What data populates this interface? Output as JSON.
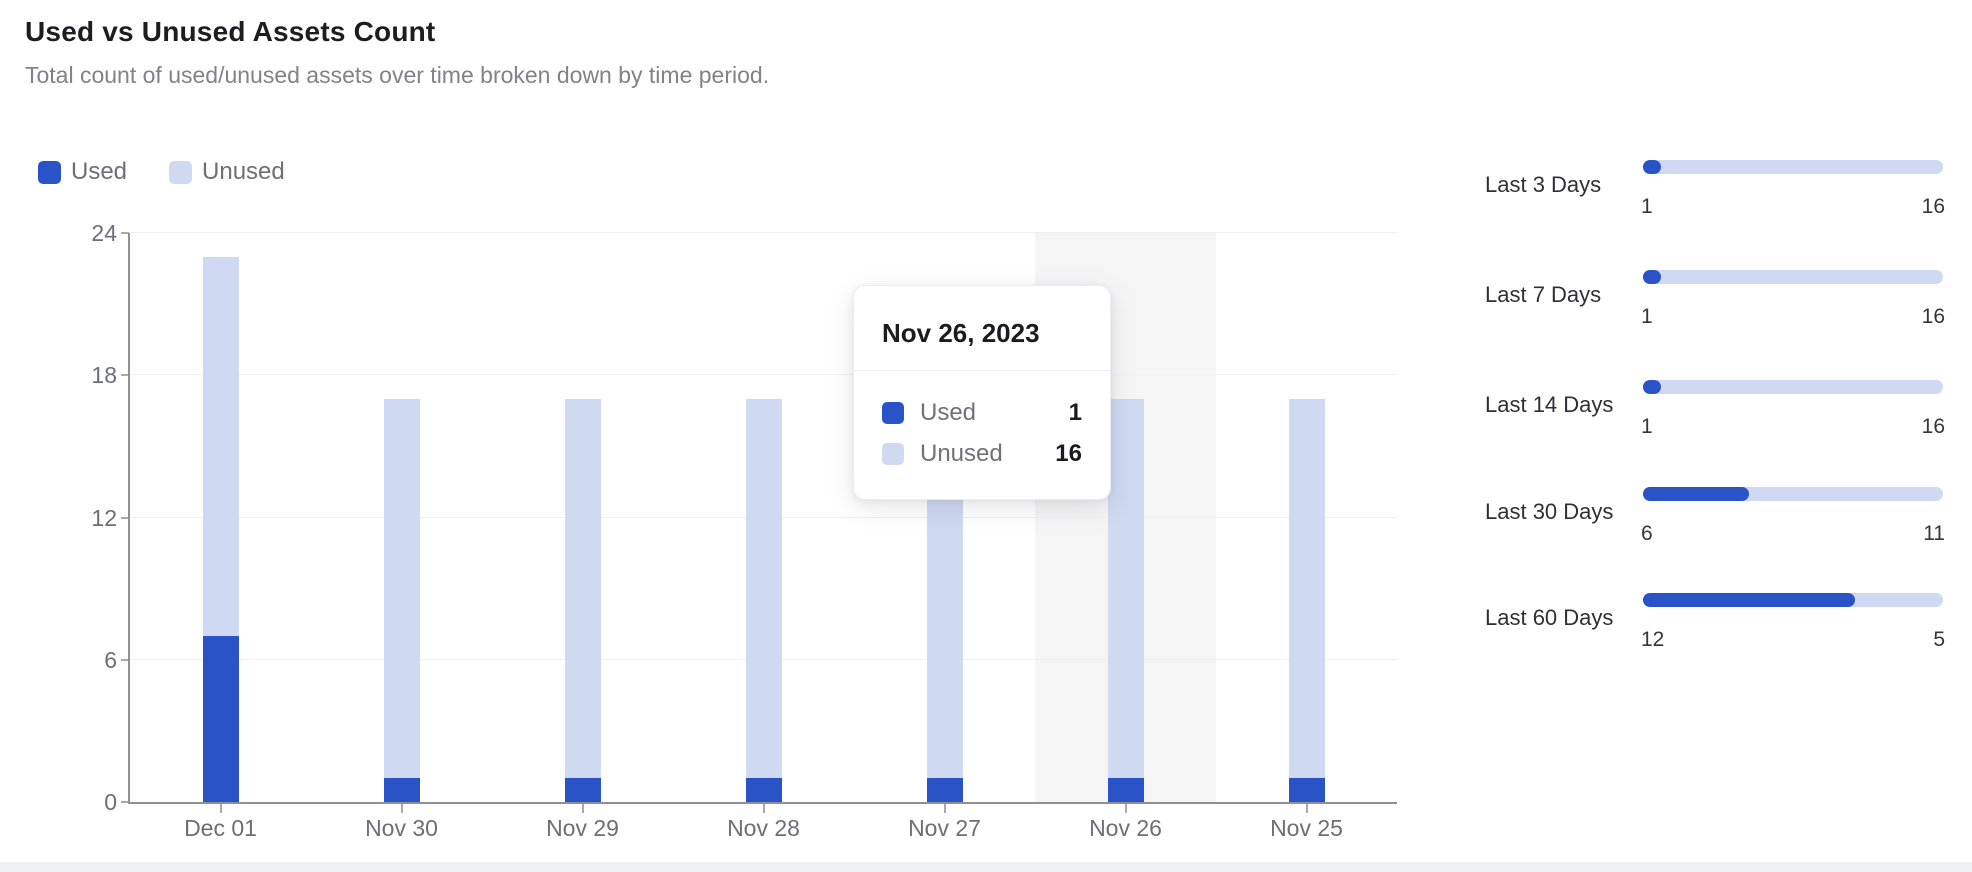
{
  "header": {
    "title": "Used vs Unused Assets Count",
    "subtitle": "Total count of used/unused assets over time broken down by time period."
  },
  "legend": [
    {
      "label": "Used",
      "color": "#2A53C8"
    },
    {
      "label": "Unused",
      "color": "#CFD9F1"
    }
  ],
  "chart_data": {
    "type": "bar",
    "stacked": true,
    "title": "Used vs Unused Assets Count",
    "categories": [
      "Dec 01",
      "Nov 30",
      "Nov 29",
      "Nov 28",
      "Nov 27",
      "Nov 26",
      "Nov 25"
    ],
    "series": [
      {
        "name": "Used",
        "color": "#2A53C8",
        "values": [
          7,
          1,
          1,
          1,
          1,
          1,
          1
        ]
      },
      {
        "name": "Unused",
        "color": "#CFD9F1",
        "values": [
          16,
          16,
          16,
          16,
          16,
          16,
          16
        ]
      }
    ],
    "xlabel": "",
    "ylabel": "",
    "ylim": [
      0,
      24
    ],
    "yticks": [
      0,
      6,
      12,
      18,
      24
    ],
    "grid": true,
    "legend_position": "top-left",
    "hovered_index": 5,
    "hovered_category": "Nov 26"
  },
  "tooltip": {
    "title": "Nov 26, 2023",
    "rows": [
      {
        "label": "Used",
        "value": "1",
        "color": "#2A53C8"
      },
      {
        "label": "Unused",
        "value": "16",
        "color": "#CFD9F1"
      }
    ]
  },
  "summary_rows": [
    {
      "label": "Last 3 Days",
      "used": 1,
      "unused": 16
    },
    {
      "label": "Last 7 Days",
      "used": 1,
      "unused": 16
    },
    {
      "label": "Last 14 Days",
      "used": 1,
      "unused": 16
    },
    {
      "label": "Last 30 Days",
      "used": 6,
      "unused": 11
    },
    {
      "label": "Last 60 Days",
      "used": 12,
      "unused": 5
    }
  ],
  "colors": {
    "used": "#2A53C8",
    "unused": "#CFD9F1",
    "hover_band": "#F5F5F6",
    "gridline": "#F0F0F1",
    "axis": "#8F8F97",
    "axis_label": "#6E6E76"
  }
}
